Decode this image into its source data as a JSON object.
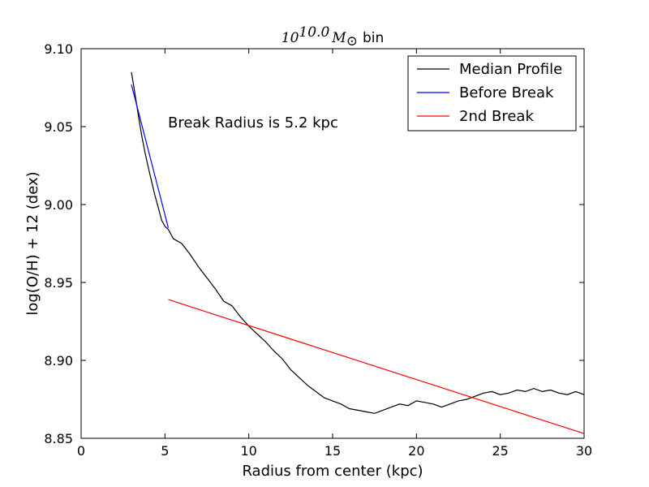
{
  "chart_data": {
    "type": "line",
    "title": {
      "base": "10",
      "exponent": "10.0",
      "symbol": "M",
      "subscript": "⊙",
      "suffix": "bin"
    },
    "xlabel": "Radius from center (kpc)",
    "ylabel": "log(O/H) + 12 (dex)",
    "xlim": [
      0,
      30
    ],
    "ylim": [
      8.85,
      9.1
    ],
    "x_ticks": [
      0,
      5,
      10,
      15,
      20,
      25,
      30
    ],
    "y_ticks": [
      8.85,
      8.9,
      8.95,
      9.0,
      9.05,
      9.1
    ],
    "x_tick_labels": [
      "0",
      "5",
      "10",
      "15",
      "20",
      "25",
      "30"
    ],
    "y_tick_labels": [
      "8.85",
      "8.90",
      "8.95",
      "9.00",
      "9.05",
      "9.10"
    ],
    "grid": false,
    "legend_position": "top-right",
    "annotation": "Break Radius is 5.2 kpc",
    "series": [
      {
        "name": "Median Profile",
        "color": "#000000",
        "x": [
          3.0,
          3.2,
          3.4,
          3.6,
          3.8,
          4.0,
          4.2,
          4.4,
          4.6,
          4.8,
          5.0,
          5.2,
          5.5,
          6.0,
          6.5,
          7.0,
          7.5,
          8.0,
          8.5,
          9.0,
          9.5,
          10.0,
          10.5,
          11.0,
          11.5,
          12.0,
          12.5,
          13.0,
          13.5,
          14.0,
          14.5,
          15.0,
          15.5,
          16.0,
          16.5,
          17.0,
          17.5,
          18.0,
          18.5,
          19.0,
          19.5,
          20.0,
          20.5,
          21.0,
          21.5,
          22.0,
          22.5,
          23.0,
          23.5,
          24.0,
          24.5,
          25.0,
          25.5,
          26.0,
          26.5,
          27.0,
          27.5,
          28.0,
          28.5,
          29.0,
          29.5,
          30.0
        ],
        "y": [
          9.085,
          9.072,
          9.058,
          9.045,
          9.034,
          9.024,
          9.015,
          9.006,
          8.998,
          8.99,
          8.986,
          8.984,
          8.978,
          8.975,
          8.968,
          8.96,
          8.953,
          8.946,
          8.938,
          8.935,
          8.928,
          8.922,
          8.917,
          8.912,
          8.906,
          8.901,
          8.894,
          8.889,
          8.884,
          8.88,
          8.876,
          8.874,
          8.872,
          8.869,
          8.868,
          8.867,
          8.866,
          8.868,
          8.87,
          8.872,
          8.871,
          8.874,
          8.873,
          8.872,
          8.87,
          8.872,
          8.874,
          8.875,
          8.877,
          8.879,
          8.88,
          8.878,
          8.879,
          8.881,
          8.88,
          8.882,
          8.88,
          8.881,
          8.879,
          8.878,
          8.88,
          8.878
        ]
      },
      {
        "name": "Before Break",
        "color": "#0000ff",
        "x": [
          3.0,
          5.2
        ],
        "y": [
          9.077,
          8.985
        ]
      },
      {
        "name": "2nd Break",
        "color": "#ff0000",
        "x": [
          5.2,
          30.0
        ],
        "y": [
          8.939,
          8.853
        ]
      }
    ]
  }
}
